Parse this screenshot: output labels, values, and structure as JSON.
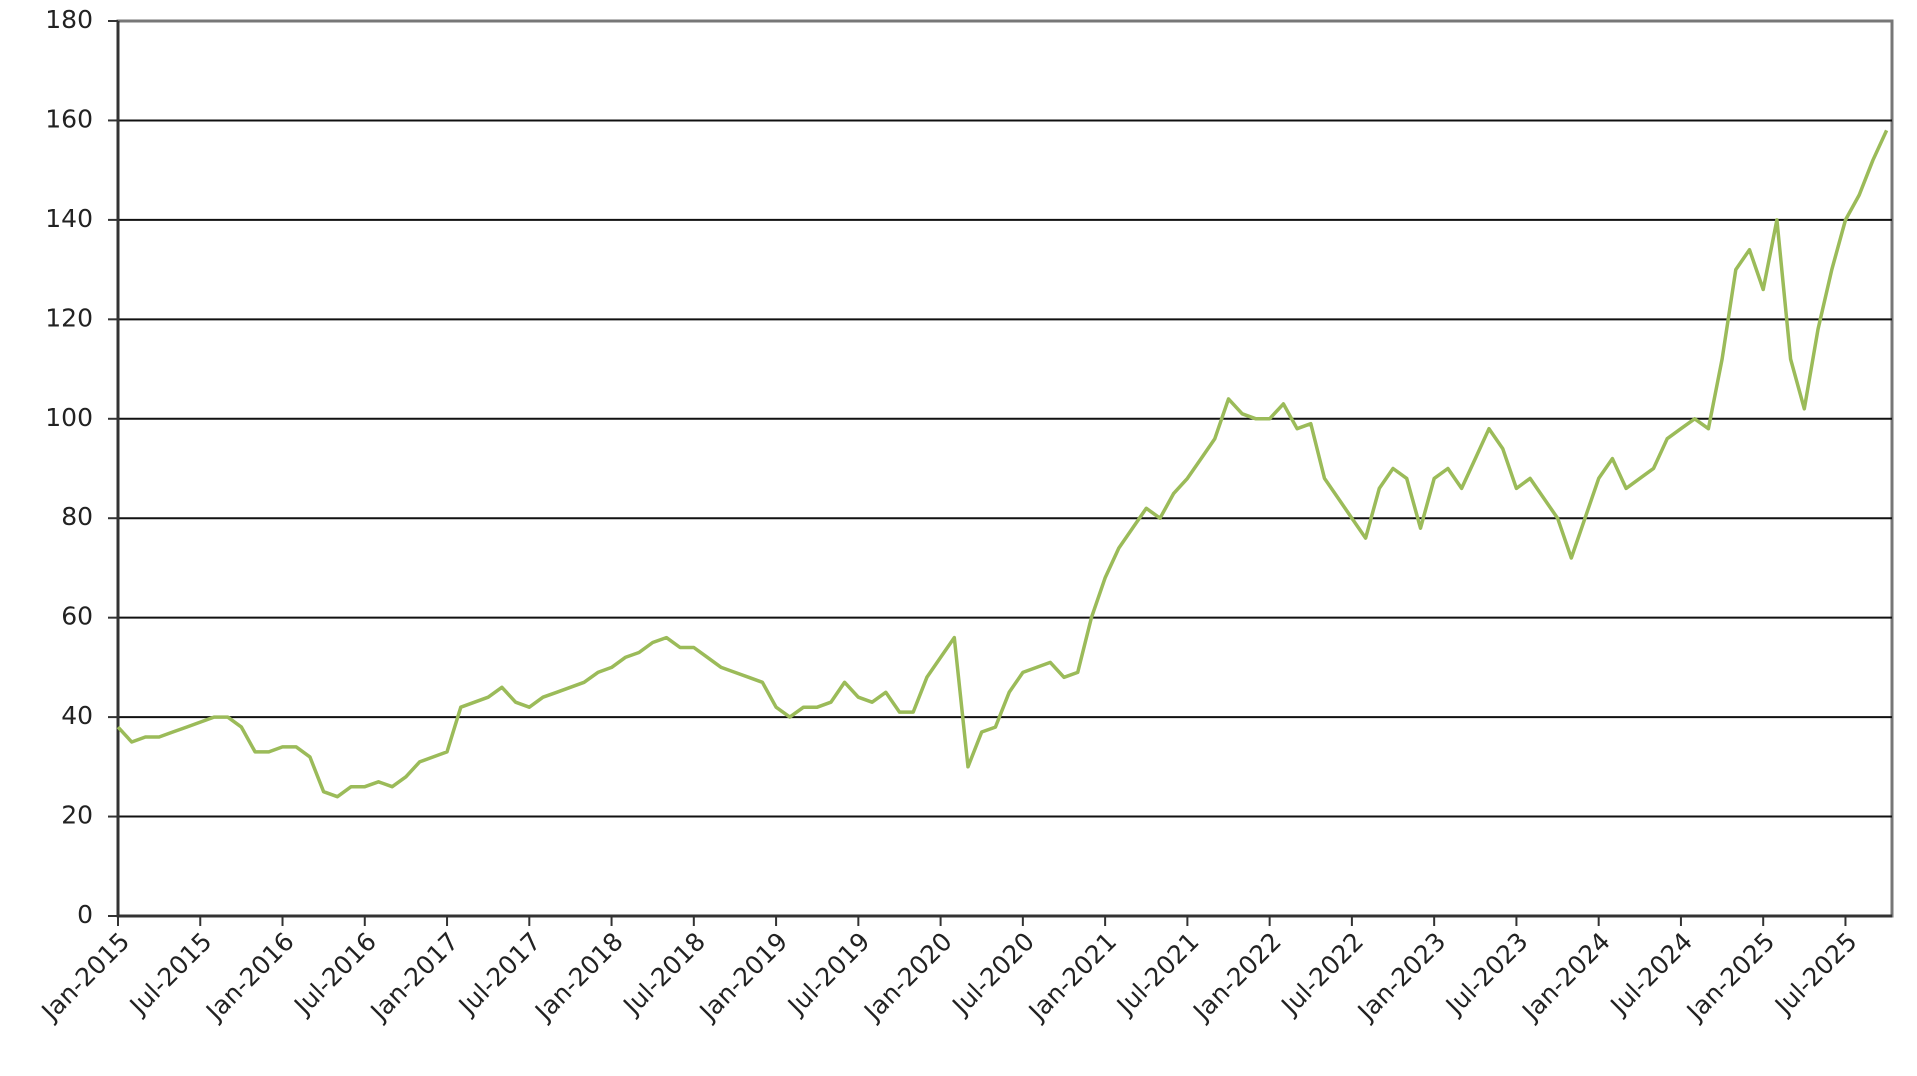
{
  "chart_data": {
    "type": "line",
    "x": [
      "Jan-2015",
      "Feb-2015",
      "Mar-2015",
      "Apr-2015",
      "May-2015",
      "Jun-2015",
      "Jul-2015",
      "Aug-2015",
      "Sep-2015",
      "Oct-2015",
      "Nov-2015",
      "Dec-2015",
      "Jan-2016",
      "Feb-2016",
      "Mar-2016",
      "Apr-2016",
      "May-2016",
      "Jun-2016",
      "Jul-2016",
      "Aug-2016",
      "Sep-2016",
      "Oct-2016",
      "Nov-2016",
      "Dec-2016",
      "Jan-2017",
      "Feb-2017",
      "Mar-2017",
      "Apr-2017",
      "May-2017",
      "Jun-2017",
      "Jul-2017",
      "Aug-2017",
      "Sep-2017",
      "Oct-2017",
      "Nov-2017",
      "Dec-2017",
      "Jan-2018",
      "Feb-2018",
      "Mar-2018",
      "Apr-2018",
      "May-2018",
      "Jun-2018",
      "Jul-2018",
      "Aug-2018",
      "Sep-2018",
      "Oct-2018",
      "Nov-2018",
      "Dec-2018",
      "Jan-2019",
      "Feb-2019",
      "Mar-2019",
      "Apr-2019",
      "May-2019",
      "Jun-2019",
      "Jul-2019",
      "Aug-2019",
      "Sep-2019",
      "Oct-2019",
      "Nov-2019",
      "Dec-2019",
      "Jan-2020",
      "Feb-2020",
      "Mar-2020",
      "Apr-2020",
      "May-2020",
      "Jun-2020",
      "Jul-2020",
      "Aug-2020",
      "Sep-2020",
      "Oct-2020",
      "Nov-2020",
      "Dec-2020",
      "Jan-2021",
      "Feb-2021",
      "Mar-2021",
      "Apr-2021",
      "May-2021",
      "Jun-2021",
      "Jul-2021",
      "Aug-2021",
      "Sep-2021",
      "Oct-2021",
      "Nov-2021",
      "Dec-2021",
      "Jan-2022",
      "Feb-2022",
      "Mar-2022",
      "Apr-2022",
      "May-2022",
      "Jun-2022",
      "Jul-2022",
      "Aug-2022",
      "Sep-2022",
      "Oct-2022",
      "Nov-2022",
      "Dec-2022",
      "Jan-2023",
      "Feb-2023",
      "Mar-2023",
      "Apr-2023",
      "May-2023",
      "Jun-2023",
      "Jul-2023",
      "Aug-2023",
      "Sep-2023",
      "Oct-2023",
      "Nov-2023",
      "Dec-2023",
      "Jan-2024",
      "Feb-2024",
      "Mar-2024",
      "Apr-2024",
      "May-2024",
      "Jun-2024",
      "Jul-2024",
      "Aug-2024",
      "Sep-2024",
      "Oct-2024",
      "Nov-2024",
      "Dec-2024",
      "Jan-2025",
      "Feb-2025",
      "Mar-2025",
      "Apr-2025",
      "May-2025",
      "Jun-2025",
      "Jul-2025",
      "Aug-2025",
      "Sep-2025",
      "Oct-2025"
    ],
    "series": [
      {
        "color": "#9bbb59",
        "values": [
          38,
          35,
          36,
          36,
          37,
          38,
          39,
          40,
          40,
          38,
          33,
          33,
          34,
          34,
          32,
          25,
          24,
          26,
          26,
          27,
          26,
          28,
          31,
          32,
          33,
          42,
          43,
          44,
          46,
          43,
          42,
          44,
          45,
          46,
          47,
          49,
          50,
          52,
          53,
          55,
          56,
          54,
          54,
          52,
          50,
          49,
          48,
          47,
          42,
          40,
          42,
          42,
          43,
          47,
          44,
          43,
          45,
          41,
          41,
          48,
          52,
          56,
          30,
          37,
          38,
          45,
          49,
          50,
          51,
          48,
          49,
          60,
          68,
          74,
          78,
          82,
          80,
          85,
          88,
          92,
          96,
          104,
          101,
          100,
          100,
          103,
          98,
          99,
          88,
          84,
          80,
          76,
          86,
          90,
          88,
          78,
          88,
          90,
          86,
          92,
          98,
          94,
          86,
          88,
          84,
          80,
          72,
          80,
          88,
          92,
          86,
          88,
          90,
          96,
          98,
          100,
          98,
          112,
          130,
          134,
          126,
          140,
          112,
          102,
          118,
          130,
          140,
          145,
          152,
          158
        ]
      }
    ],
    "xticks": [
      "Jan-2015",
      "Jul-2015",
      "Jan-2016",
      "Jul-2016",
      "Jan-2017",
      "Jul-2017",
      "Jan-2018",
      "Jul-2018",
      "Jan-2019",
      "Jul-2019",
      "Jan-2020",
      "Jul-2020",
      "Jan-2021",
      "Jul-2021",
      "Jan-2022",
      "Jul-2022",
      "Jan-2023",
      "Jul-2023",
      "Jan-2024",
      "Jul-2024",
      "Jan-2025",
      "Jul-2025"
    ],
    "ylim": [
      0,
      180
    ],
    "yticks": [
      0,
      20,
      40,
      60,
      80,
      100,
      120,
      140,
      160,
      180
    ],
    "grid": true
  }
}
